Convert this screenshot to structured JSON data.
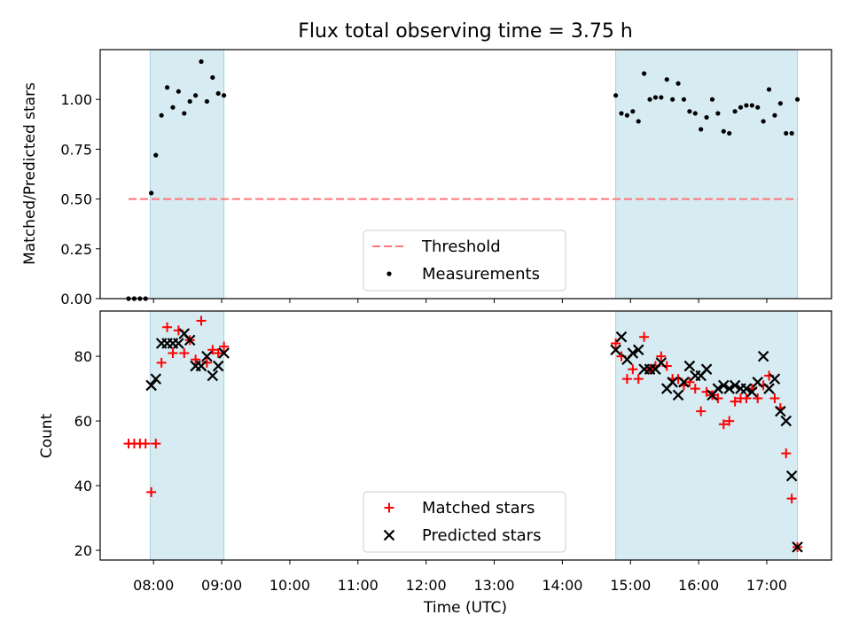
{
  "chart_data": [
    {
      "type": "scatter",
      "title": "Flux total observing time = 3.75 h",
      "xlabel": "",
      "ylabel": "Matched/Predicted stars",
      "ylim": [
        0,
        1.25
      ],
      "yticks": [
        "0.00",
        "0.25",
        "0.50",
        "0.75",
        "1.00"
      ],
      "ytick_values": [
        0,
        0.25,
        0.5,
        0.75,
        1.0
      ],
      "legend_position": "lower center",
      "shaded_regions": [
        [
          "07:57",
          "09:02"
        ],
        [
          "14:47",
          "17:27"
        ]
      ],
      "threshold": {
        "name": "Threshold",
        "y": 0.5,
        "x_start": "07:38",
        "x_end": "17:27",
        "color": "#ff7777"
      },
      "series": [
        {
          "name": "Measurements",
          "color": "#000000",
          "marker": "dot",
          "points": [
            [
              "07:38",
              0.0
            ],
            [
              "07:43",
              0.0
            ],
            [
              "07:48",
              0.0
            ],
            [
              "07:53",
              0.0
            ],
            [
              "07:58",
              0.53
            ],
            [
              "08:02",
              0.72
            ],
            [
              "08:07",
              0.92
            ],
            [
              "08:12",
              1.06
            ],
            [
              "08:17",
              0.96
            ],
            [
              "08:22",
              1.04
            ],
            [
              "08:27",
              0.93
            ],
            [
              "08:32",
              0.99
            ],
            [
              "08:37",
              1.02
            ],
            [
              "08:42",
              1.19
            ],
            [
              "08:47",
              0.99
            ],
            [
              "08:52",
              1.11
            ],
            [
              "08:57",
              1.03
            ],
            [
              "09:02",
              1.02
            ],
            [
              "14:47",
              1.02
            ],
            [
              "14:52",
              0.93
            ],
            [
              "14:57",
              0.92
            ],
            [
              "15:02",
              0.94
            ],
            [
              "15:07",
              0.89
            ],
            [
              "15:12",
              1.13
            ],
            [
              "15:17",
              1.0
            ],
            [
              "15:22",
              1.01
            ],
            [
              "15:27",
              1.01
            ],
            [
              "15:32",
              1.1
            ],
            [
              "15:37",
              1.0
            ],
            [
              "15:42",
              1.08
            ],
            [
              "15:47",
              1.0
            ],
            [
              "15:52",
              0.94
            ],
            [
              "15:57",
              0.93
            ],
            [
              "16:02",
              0.85
            ],
            [
              "16:07",
              0.91
            ],
            [
              "16:12",
              1.0
            ],
            [
              "16:17",
              0.93
            ],
            [
              "16:22",
              0.84
            ],
            [
              "16:27",
              0.83
            ],
            [
              "16:32",
              0.94
            ],
            [
              "16:37",
              0.96
            ],
            [
              "16:42",
              0.97
            ],
            [
              "16:47",
              0.97
            ],
            [
              "16:52",
              0.96
            ],
            [
              "16:57",
              0.89
            ],
            [
              "17:02",
              1.05
            ],
            [
              "17:07",
              0.92
            ],
            [
              "17:12",
              0.98
            ],
            [
              "17:17",
              0.83
            ],
            [
              "17:22",
              0.83
            ],
            [
              "17:27",
              1.0
            ]
          ]
        }
      ]
    },
    {
      "type": "scatter",
      "title": "",
      "xlabel": "Time (UTC)",
      "ylabel": "Count",
      "ylim": [
        17,
        94
      ],
      "yticks": [
        "20",
        "40",
        "60",
        "80"
      ],
      "ytick_values": [
        20,
        40,
        60,
        80
      ],
      "xticks": [
        "08:00",
        "09:00",
        "10:00",
        "11:00",
        "12:00",
        "13:00",
        "14:00",
        "15:00",
        "16:00",
        "17:00"
      ],
      "xlim": [
        "07:13",
        "17:57"
      ],
      "legend_position": "lower center",
      "shaded_regions": [
        [
          "07:57",
          "09:02"
        ],
        [
          "14:47",
          "17:27"
        ]
      ],
      "series": [
        {
          "name": "Matched stars",
          "color": "#ff0000",
          "marker": "plus",
          "points": [
            [
              "07:38",
              53
            ],
            [
              "07:43",
              53
            ],
            [
              "07:48",
              53
            ],
            [
              "07:53",
              53
            ],
            [
              "07:58",
              38
            ],
            [
              "08:02",
              53
            ],
            [
              "08:07",
              78
            ],
            [
              "08:12",
              89
            ],
            [
              "08:17",
              81
            ],
            [
              "08:22",
              88
            ],
            [
              "08:27",
              81
            ],
            [
              "08:32",
              85
            ],
            [
              "08:37",
              79
            ],
            [
              "08:42",
              91
            ],
            [
              "08:47",
              78
            ],
            [
              "08:52",
              82
            ],
            [
              "08:57",
              81
            ],
            [
              "09:02",
              83
            ],
            [
              "14:47",
              84
            ],
            [
              "14:52",
              80
            ],
            [
              "14:57",
              73
            ],
            [
              "15:02",
              76
            ],
            [
              "15:07",
              73
            ],
            [
              "15:12",
              86
            ],
            [
              "15:17",
              76
            ],
            [
              "15:22",
              77
            ],
            [
              "15:27",
              80
            ],
            [
              "15:32",
              77
            ],
            [
              "15:37",
              73
            ],
            [
              "15:42",
              73
            ],
            [
              "15:47",
              71
            ],
            [
              "15:52",
              72
            ],
            [
              "15:57",
              70
            ],
            [
              "16:02",
              63
            ],
            [
              "16:07",
              69
            ],
            [
              "16:12",
              68
            ],
            [
              "16:17",
              67
            ],
            [
              "16:22",
              59
            ],
            [
              "16:27",
              60
            ],
            [
              "16:32",
              66
            ],
            [
              "16:37",
              67
            ],
            [
              "16:42",
              67
            ],
            [
              "16:47",
              70
            ],
            [
              "16:52",
              67
            ],
            [
              "16:57",
              71
            ],
            [
              "17:02",
              74
            ],
            [
              "17:07",
              67
            ],
            [
              "17:12",
              64
            ],
            [
              "17:17",
              50
            ],
            [
              "17:22",
              36
            ],
            [
              "17:27",
              21
            ]
          ]
        },
        {
          "name": "Predicted stars",
          "color": "#000000",
          "marker": "x",
          "points": [
            [
              "07:58",
              71
            ],
            [
              "08:02",
              73
            ],
            [
              "08:07",
              84
            ],
            [
              "08:12",
              84
            ],
            [
              "08:17",
              84
            ],
            [
              "08:22",
              84
            ],
            [
              "08:27",
              87
            ],
            [
              "08:32",
              85
            ],
            [
              "08:37",
              77
            ],
            [
              "08:42",
              77
            ],
            [
              "08:47",
              80
            ],
            [
              "08:52",
              74
            ],
            [
              "08:57",
              77
            ],
            [
              "09:02",
              81
            ],
            [
              "14:47",
              82
            ],
            [
              "14:52",
              86
            ],
            [
              "14:57",
              79
            ],
            [
              "15:02",
              81
            ],
            [
              "15:07",
              82
            ],
            [
              "15:12",
              76
            ],
            [
              "15:17",
              76
            ],
            [
              "15:22",
              76
            ],
            [
              "15:27",
              78
            ],
            [
              "15:32",
              70
            ],
            [
              "15:37",
              72
            ],
            [
              "15:42",
              68
            ],
            [
              "15:47",
              72
            ],
            [
              "15:52",
              77
            ],
            [
              "15:57",
              74
            ],
            [
              "16:02",
              74
            ],
            [
              "16:07",
              76
            ],
            [
              "16:12",
              68
            ],
            [
              "16:17",
              70
            ],
            [
              "16:22",
              71
            ],
            [
              "16:27",
              70
            ],
            [
              "16:32",
              71
            ],
            [
              "16:37",
              70
            ],
            [
              "16:42",
              70
            ],
            [
              "16:47",
              69
            ],
            [
              "16:52",
              72
            ],
            [
              "16:57",
              80
            ],
            [
              "17:02",
              70
            ],
            [
              "17:07",
              73
            ],
            [
              "17:12",
              63
            ],
            [
              "17:17",
              60
            ],
            [
              "17:22",
              43
            ],
            [
              "17:27",
              21
            ]
          ]
        }
      ]
    }
  ]
}
